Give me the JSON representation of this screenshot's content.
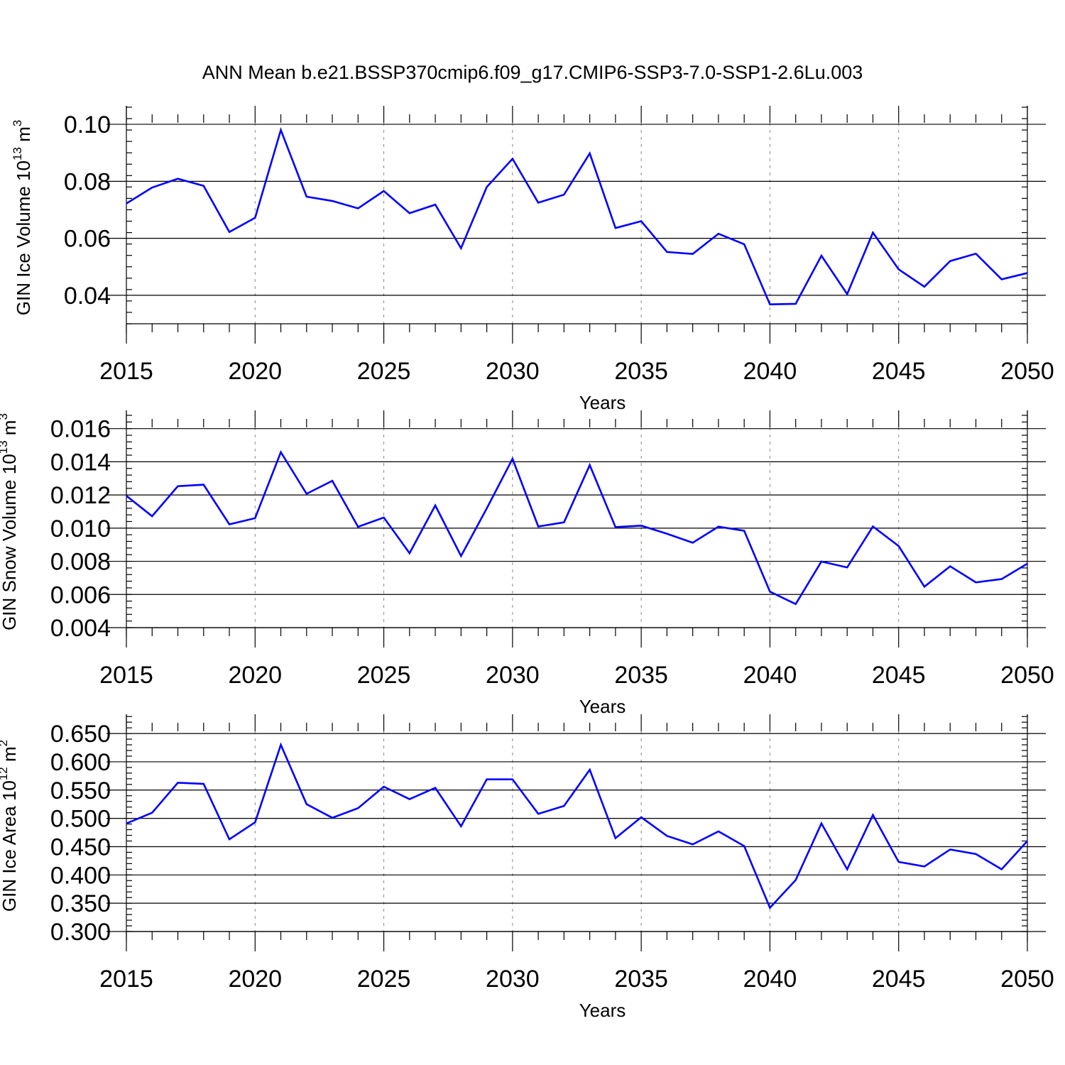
{
  "title": "ANN Mean b.e21.BSSP370cmip6.f09_g17.CMIP6-SSP3-7.0-SSP1-2.6Lu.003",
  "colors": {
    "series": "#0000ff",
    "grid": "#888888",
    "axes": "#000000"
  },
  "chart_data": [
    {
      "type": "line",
      "xlabel": "Years",
      "ylabel": "GIN Ice Volume 10",
      "ylabel_exp": "13",
      "ylabel_unit": " m",
      "ylabel_unit_exp": "3",
      "xlim": [
        2015,
        2050
      ],
      "ylim": [
        0.03,
        0.1065
      ],
      "x_ticks": [
        2015,
        2020,
        2025,
        2030,
        2035,
        2040,
        2045,
        2050
      ],
      "y_ticks": [
        "0.04",
        "0.06",
        "0.08",
        "0.10"
      ],
      "grid": "vertical dashed at major x ticks",
      "x": [
        2015,
        2016,
        2017,
        2018,
        2019,
        2020,
        2021,
        2022,
        2023,
        2024,
        2025,
        2026,
        2027,
        2028,
        2029,
        2030,
        2031,
        2032,
        2033,
        2034,
        2035,
        2036,
        2037,
        2038,
        2039,
        2040,
        2041,
        2042,
        2043,
        2044,
        2045,
        2046,
        2047,
        2048,
        2049,
        2050
      ],
      "series": [
        {
          "values": [
            0.0722,
            0.0778,
            0.0809,
            0.0784,
            0.0622,
            0.0672,
            0.098,
            0.0746,
            0.0731,
            0.0705,
            0.0766,
            0.0688,
            0.0718,
            0.0565,
            0.078,
            0.0879,
            0.0725,
            0.0753,
            0.0898,
            0.0636,
            0.066,
            0.0552,
            0.0545,
            0.0616,
            0.0579,
            0.0368,
            0.037,
            0.0539,
            0.0404,
            0.062,
            0.0491,
            0.043,
            0.052,
            0.0546,
            0.0456,
            0.0478
          ]
        }
      ]
    },
    {
      "type": "line",
      "xlabel": "Years",
      "ylabel": "GIN Snow Volume 10",
      "ylabel_exp": "13",
      "ylabel_unit": " m",
      "ylabel_unit_exp": "3",
      "xlim": [
        2015,
        2050
      ],
      "ylim": [
        0.004,
        0.0171
      ],
      "x_ticks": [
        2015,
        2020,
        2025,
        2030,
        2035,
        2040,
        2045,
        2050
      ],
      "y_ticks": [
        "0.004",
        "0.006",
        "0.008",
        "0.010",
        "0.012",
        "0.014",
        "0.016"
      ],
      "grid": "vertical dashed at major x ticks",
      "x": [
        2015,
        2016,
        2017,
        2018,
        2019,
        2020,
        2021,
        2022,
        2023,
        2024,
        2025,
        2026,
        2027,
        2028,
        2029,
        2030,
        2031,
        2032,
        2033,
        2034,
        2035,
        2036,
        2037,
        2038,
        2039,
        2040,
        2041,
        2042,
        2043,
        2044,
        2045,
        2046,
        2047,
        2048,
        2049,
        2050
      ],
      "series": [
        {
          "values": [
            0.01195,
            0.01072,
            0.01253,
            0.01262,
            0.01023,
            0.0106,
            0.01458,
            0.01207,
            0.01285,
            0.01008,
            0.01064,
            0.00849,
            0.01137,
            0.00832,
            0.01119,
            0.01418,
            0.0101,
            0.01035,
            0.0138,
            0.01006,
            0.01015,
            0.00966,
            0.00912,
            0.01009,
            0.00984,
            0.00617,
            0.00542,
            0.00799,
            0.00763,
            0.0101,
            0.00892,
            0.00647,
            0.0077,
            0.00673,
            0.00693,
            0.00786
          ]
        }
      ]
    },
    {
      "type": "line",
      "xlabel": "Years",
      "ylabel": "GIN Ice Area 10",
      "ylabel_exp": "12",
      "ylabel_unit": " m",
      "ylabel_unit_exp": "2",
      "xlim": [
        2015,
        2050
      ],
      "ylim": [
        0.3,
        0.684
      ],
      "x_ticks": [
        2015,
        2020,
        2025,
        2030,
        2035,
        2040,
        2045,
        2050
      ],
      "y_ticks": [
        "0.300",
        "0.350",
        "0.400",
        "0.450",
        "0.500",
        "0.550",
        "0.600",
        "0.650"
      ],
      "grid": "vertical dashed at major x ticks",
      "x": [
        2015,
        2016,
        2017,
        2018,
        2019,
        2020,
        2021,
        2022,
        2023,
        2024,
        2025,
        2026,
        2027,
        2028,
        2029,
        2030,
        2031,
        2032,
        2033,
        2034,
        2035,
        2036,
        2037,
        2038,
        2039,
        2040,
        2041,
        2042,
        2043,
        2044,
        2045,
        2046,
        2047,
        2048,
        2049,
        2050
      ],
      "series": [
        {
          "values": [
            0.491,
            0.51,
            0.563,
            0.561,
            0.463,
            0.493,
            0.63,
            0.525,
            0.501,
            0.518,
            0.556,
            0.534,
            0.554,
            0.486,
            0.569,
            0.569,
            0.508,
            0.522,
            0.586,
            0.465,
            0.502,
            0.469,
            0.454,
            0.477,
            0.451,
            0.342,
            0.391,
            0.491,
            0.41,
            0.506,
            0.423,
            0.415,
            0.445,
            0.437,
            0.41,
            0.46
          ]
        }
      ]
    }
  ]
}
